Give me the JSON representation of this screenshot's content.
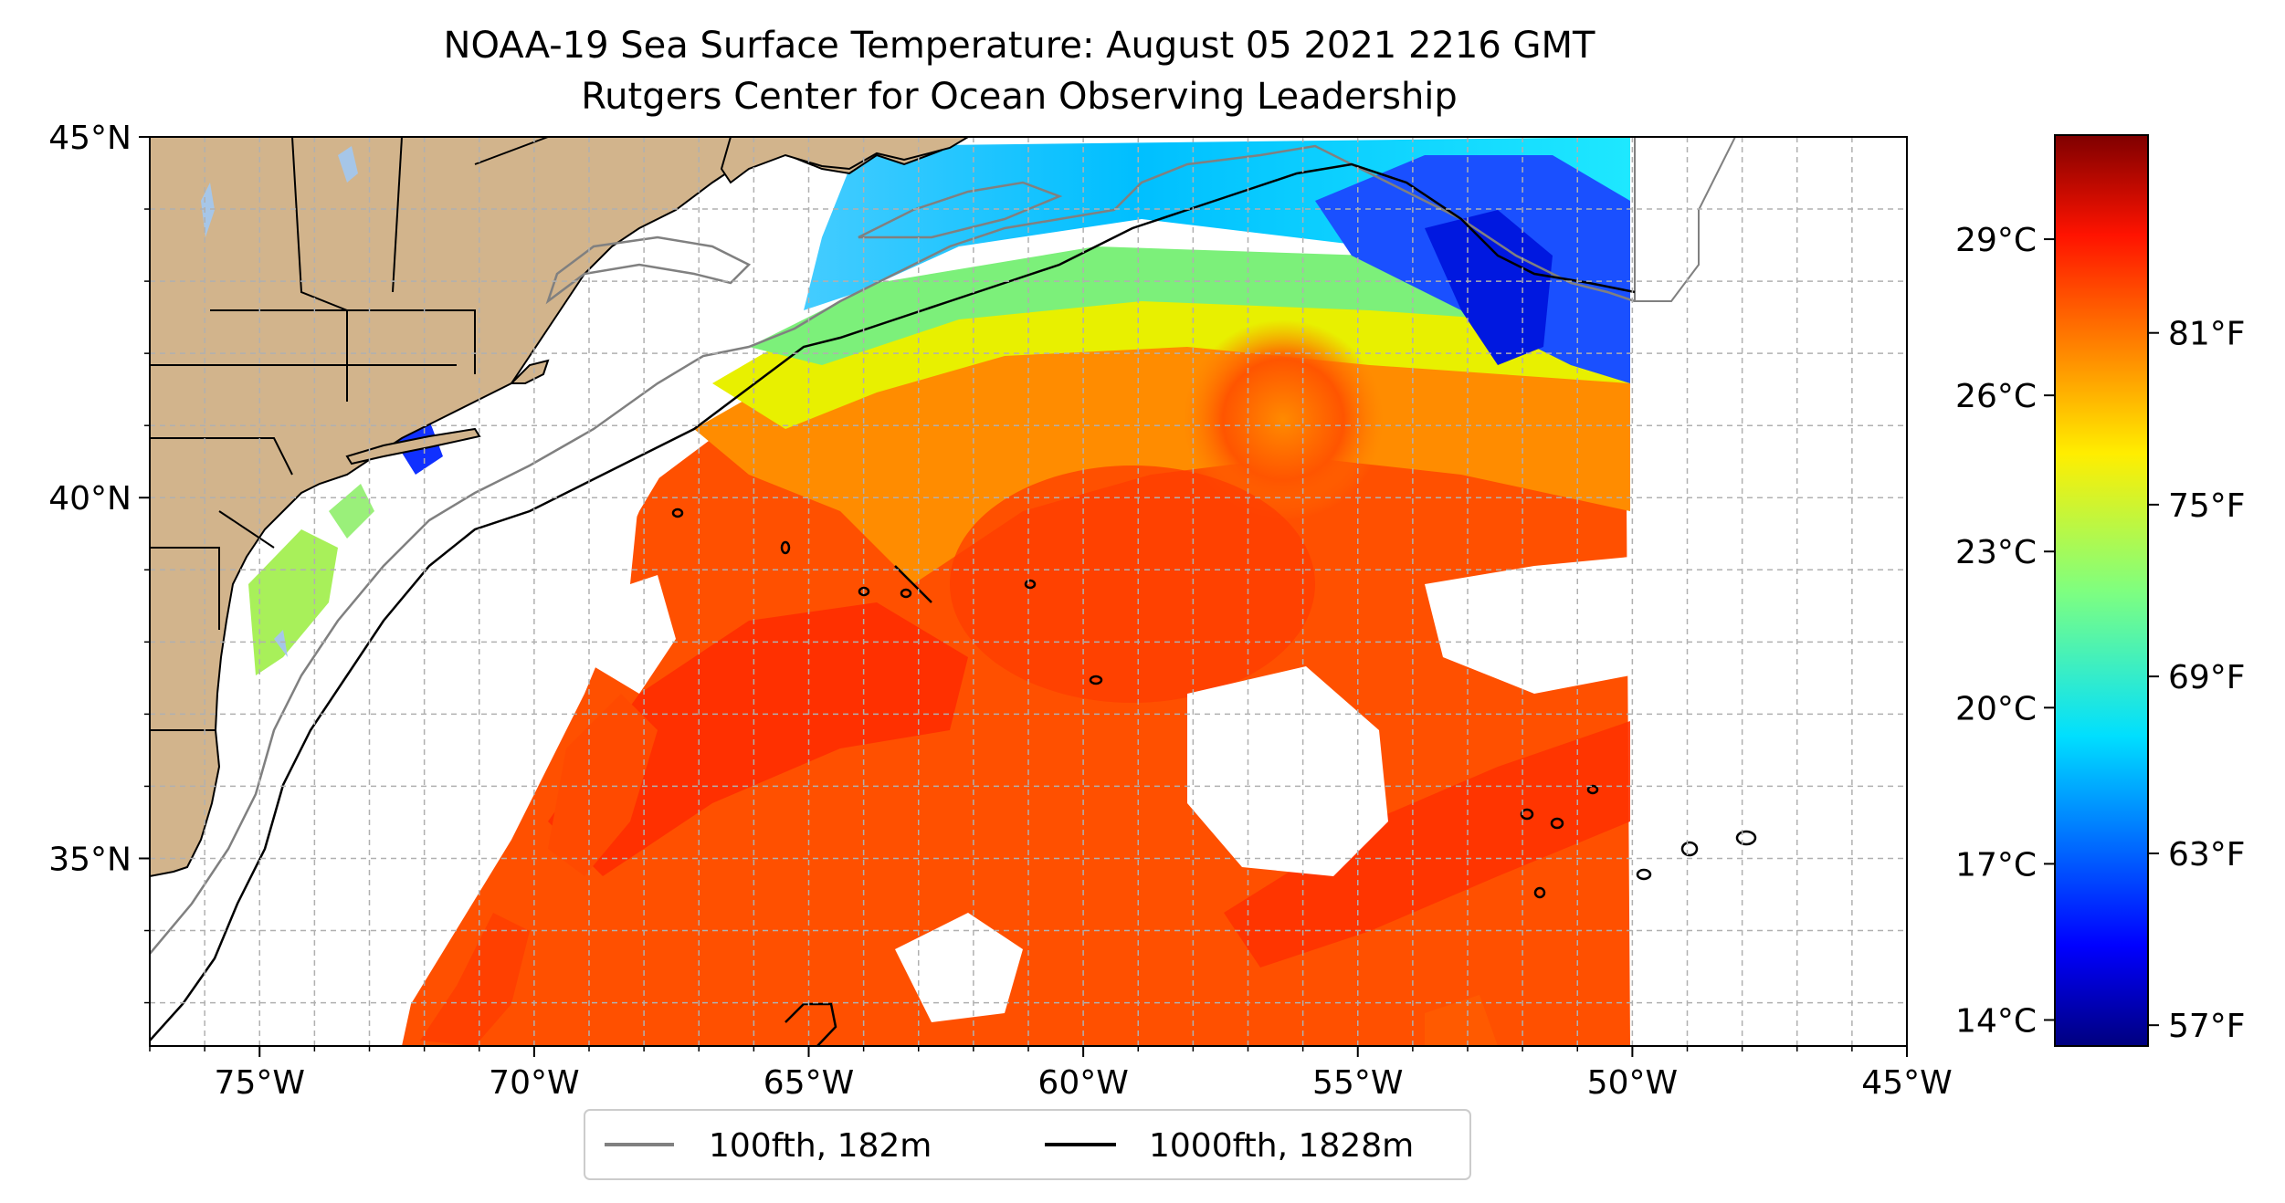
{
  "title": {
    "line1": "NOAA-19 Sea Surface Temperature: August 05 2021 2216 GMT",
    "line2": "Rutgers Center for Ocean Observing Leadership"
  },
  "axes": {
    "lon_range": [
      -77,
      -45
    ],
    "lat_range": [
      32.4,
      45
    ],
    "lon_ticks": [
      {
        "value": -75,
        "label": "75°W"
      },
      {
        "value": -70,
        "label": "70°W"
      },
      {
        "value": -65,
        "label": "65°W"
      },
      {
        "value": -60,
        "label": "60°W"
      },
      {
        "value": -55,
        "label": "55°W"
      },
      {
        "value": -50,
        "label": "50°W"
      },
      {
        "value": -45,
        "label": "45°W"
      }
    ],
    "lat_ticks": [
      {
        "value": 35,
        "label": "35°N"
      },
      {
        "value": 40,
        "label": "40°N"
      },
      {
        "value": 45,
        "label": "45°N"
      }
    ],
    "gridlines": "dashed, every 1 degree"
  },
  "colorbar": {
    "colormap": "jet",
    "range_c": [
      13.5,
      31.0
    ],
    "celsius_ticks": [
      {
        "value": 14,
        "label": "14°C"
      },
      {
        "value": 17,
        "label": "17°C"
      },
      {
        "value": 20,
        "label": "20°C"
      },
      {
        "value": 23,
        "label": "23°C"
      },
      {
        "value": 26,
        "label": "26°C"
      },
      {
        "value": 29,
        "label": "29°C"
      }
    ],
    "fahrenheit_ticks": [
      {
        "value_c": 13.9,
        "label": "57°F"
      },
      {
        "value_c": 17.2,
        "label": "63°F"
      },
      {
        "value_c": 20.6,
        "label": "69°F"
      },
      {
        "value_c": 23.9,
        "label": "75°F"
      },
      {
        "value_c": 27.2,
        "label": "81°F"
      }
    ]
  },
  "legend": {
    "placement": "bottom-center, below map",
    "items": [
      {
        "label": "100fth, 182m",
        "color": "#808080"
      },
      {
        "label": "1000fth, 1828m",
        "color": "#000000"
      }
    ]
  },
  "colors": {
    "land": "#d2b48c",
    "grid": "#b0b0b0",
    "warm_water": "#ff5a00",
    "cold_water": "#0040ff"
  }
}
